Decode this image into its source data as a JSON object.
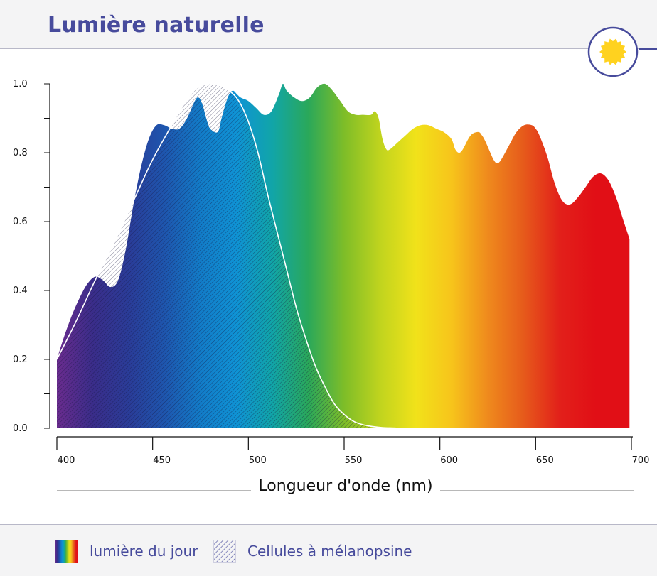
{
  "title": "Lumière naturelle",
  "icon": "sun-icon",
  "colors": {
    "accent": "#474b9c",
    "sun": "#ffd21f",
    "spectrum": [
      "#6a2c8e",
      "#3a2d8a",
      "#2a3c98",
      "#1e56ae",
      "#127cc8",
      "#0f93d5",
      "#11a5a8",
      "#2aa85a",
      "#7ebd28",
      "#c0d41e",
      "#f1e21a",
      "#f7c41b",
      "#ef8a1d",
      "#e65a1b",
      "#e2201a",
      "#e10f16",
      "#e10f16"
    ]
  },
  "legend": {
    "daylight": "lumière du jour",
    "melanopsin": "Cellules à mélanopsine"
  },
  "chart_data": {
    "type": "area",
    "title": "Lumière naturelle",
    "xlabel": "Longueur d'onde (nm)",
    "ylabel": "",
    "xlim": [
      400,
      700
    ],
    "ylim": [
      0,
      1.0
    ],
    "x_ticks": [
      "400",
      "450",
      "500",
      "550",
      "600",
      "650",
      "700"
    ],
    "y_ticks": [
      "0.0",
      "0.2",
      "0.4",
      "0.6",
      "0.8",
      "1.0"
    ],
    "grid": false,
    "legend_position": "bottom",
    "series": [
      {
        "name": "lumière du jour",
        "style": "spectrum-gradient-fill",
        "x": [
          400,
          404,
          408,
          412,
          416,
          420,
          424,
          428,
          432,
          436,
          440,
          444,
          448,
          452,
          456,
          460,
          464,
          468,
          472,
          474,
          476,
          478,
          480,
          484,
          486,
          488,
          490,
          492,
          494,
          496,
          500,
          504,
          508,
          512,
          516,
          518,
          520,
          524,
          528,
          532,
          536,
          540,
          544,
          548,
          552,
          556,
          560,
          564,
          566,
          568,
          570,
          572,
          574,
          578,
          582,
          586,
          590,
          594,
          598,
          602,
          606,
          608,
          610,
          612,
          616,
          620,
          622,
          624,
          628,
          630,
          632,
          636,
          640,
          644,
          648,
          650,
          652,
          656,
          660,
          664,
          668,
          672,
          676,
          680,
          684,
          688,
          692,
          696,
          699
        ],
        "values": [
          0.2,
          0.27,
          0.33,
          0.38,
          0.42,
          0.44,
          0.43,
          0.41,
          0.43,
          0.52,
          0.65,
          0.76,
          0.84,
          0.88,
          0.88,
          0.87,
          0.87,
          0.9,
          0.95,
          0.96,
          0.94,
          0.9,
          0.87,
          0.86,
          0.9,
          0.94,
          0.97,
          0.98,
          0.97,
          0.96,
          0.95,
          0.93,
          0.91,
          0.92,
          0.97,
          1.0,
          0.98,
          0.96,
          0.95,
          0.96,
          0.99,
          1.0,
          0.98,
          0.95,
          0.92,
          0.91,
          0.91,
          0.91,
          0.92,
          0.9,
          0.84,
          0.81,
          0.81,
          0.83,
          0.85,
          0.87,
          0.88,
          0.88,
          0.87,
          0.86,
          0.84,
          0.81,
          0.8,
          0.81,
          0.85,
          0.86,
          0.85,
          0.83,
          0.78,
          0.77,
          0.78,
          0.82,
          0.86,
          0.88,
          0.88,
          0.87,
          0.85,
          0.79,
          0.71,
          0.66,
          0.65,
          0.67,
          0.7,
          0.73,
          0.74,
          0.72,
          0.67,
          0.6,
          0.55
        ]
      },
      {
        "name": "Cellules à mélanopsine",
        "style": "hatched-fill-white-outline",
        "x": [
          400,
          410,
          420,
          430,
          440,
          450,
          460,
          465,
          470,
          475,
          480,
          485,
          490,
          495,
          500,
          505,
          510,
          515,
          520,
          525,
          530,
          535,
          540,
          545,
          550,
          555,
          560,
          565,
          570,
          575,
          580,
          585,
          590
        ],
        "values": [
          0.2,
          0.31,
          0.43,
          0.54,
          0.66,
          0.78,
          0.88,
          0.93,
          0.97,
          0.995,
          1.0,
          0.995,
          0.98,
          0.95,
          0.89,
          0.8,
          0.68,
          0.57,
          0.46,
          0.35,
          0.26,
          0.18,
          0.12,
          0.07,
          0.04,
          0.02,
          0.01,
          0.005,
          0.002,
          0.001,
          0.0,
          0.0,
          0.0
        ]
      }
    ]
  }
}
